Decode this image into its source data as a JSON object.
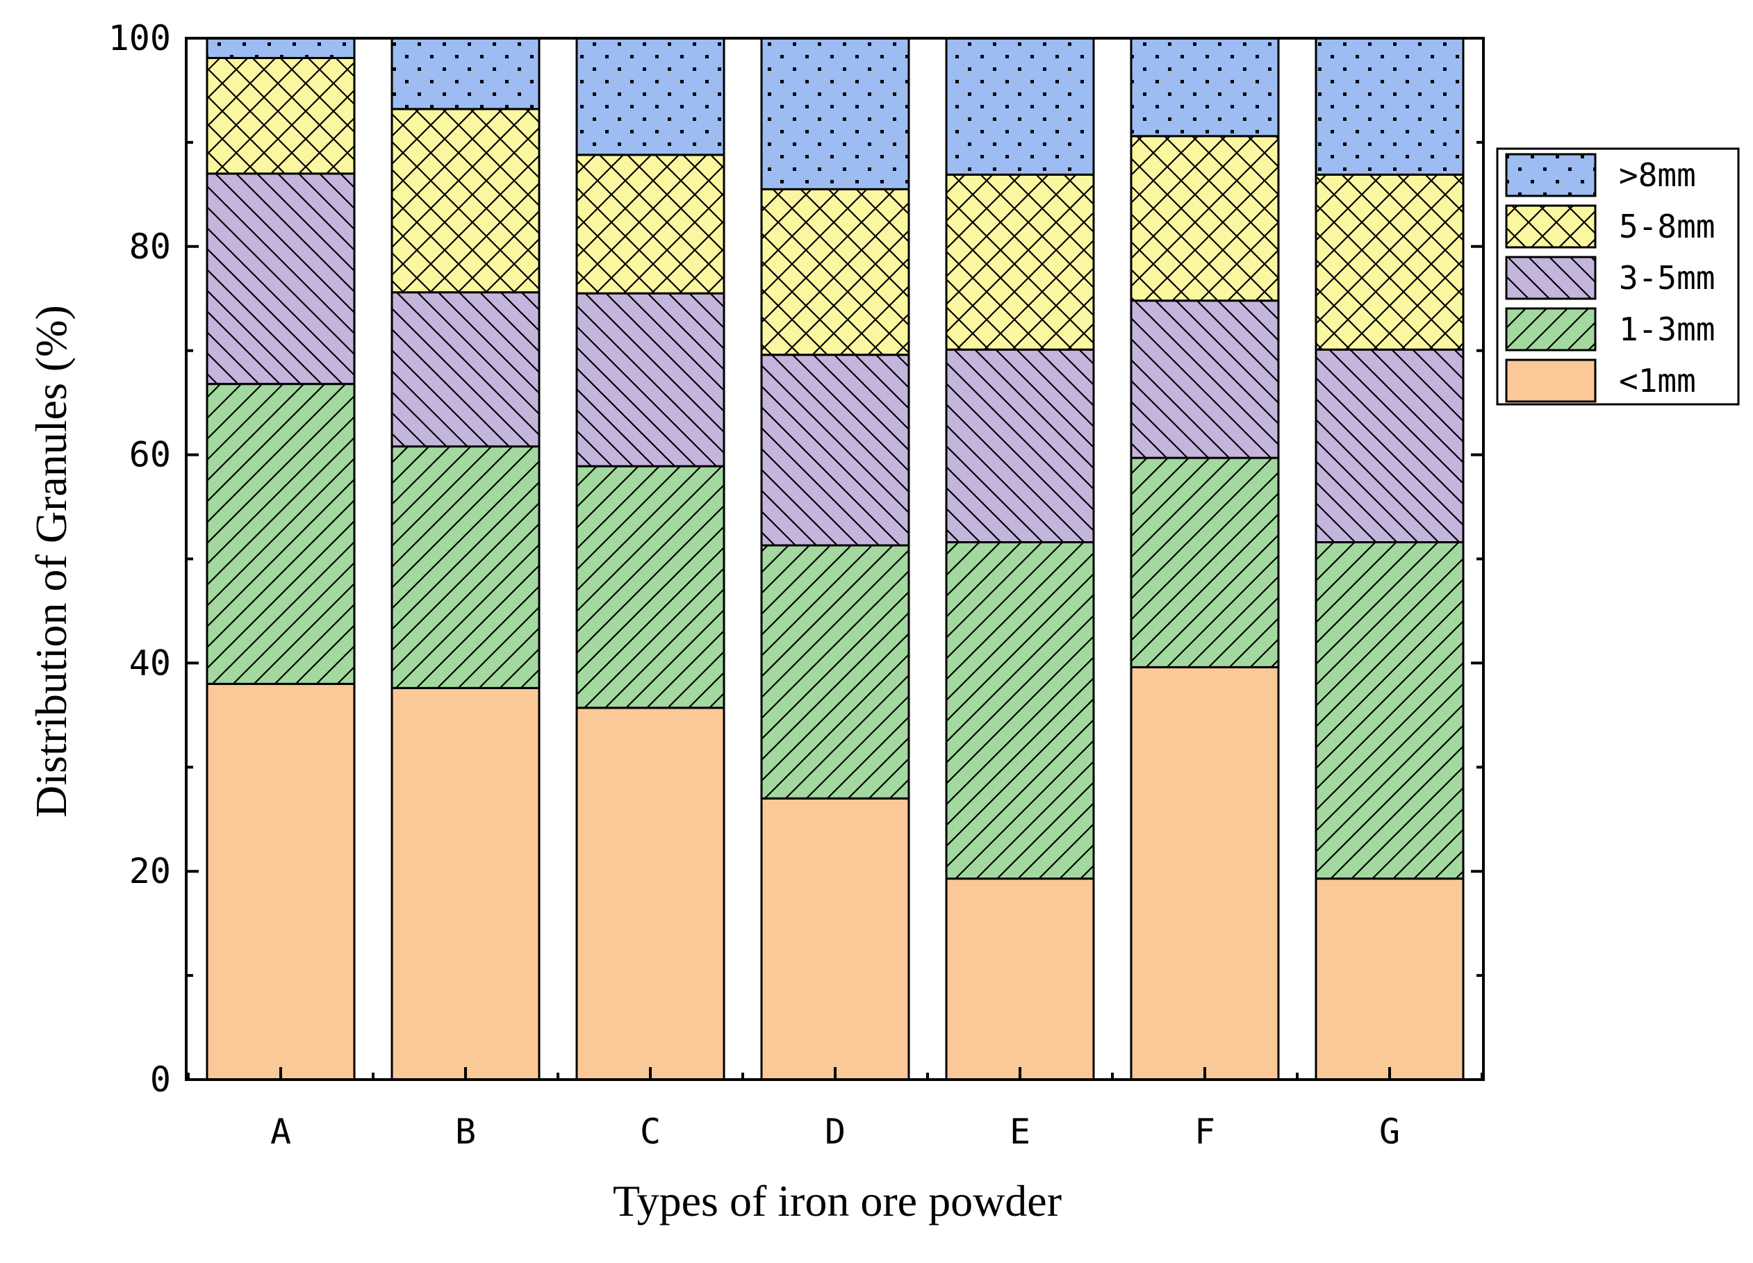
{
  "chart_data": {
    "type": "bar",
    "stacked": true,
    "xlabel": "Types of iron ore powder",
    "ylabel": "Distribution of Granules (%)",
    "ylim": [
      0,
      100
    ],
    "yticks": [
      0,
      20,
      40,
      60,
      80,
      100
    ],
    "categories": [
      "A",
      "B",
      "C",
      "D",
      "E",
      "F",
      "G"
    ],
    "legend_position": "right",
    "series": [
      {
        "name": "<1mm",
        "color": "#fbc898",
        "pattern": "none",
        "values": [
          38.0,
          37.6,
          35.7,
          27.0,
          19.3,
          39.6,
          19.3
        ]
      },
      {
        "name": "1-3mm",
        "color": "#a3d89f",
        "pattern": "diagonal",
        "values": [
          28.8,
          23.2,
          23.2,
          24.3,
          32.3,
          20.1,
          32.3
        ]
      },
      {
        "name": "3-5mm",
        "color": "#c4b5dc",
        "pattern": "backslash",
        "values": [
          20.2,
          14.8,
          16.6,
          18.3,
          18.5,
          15.1,
          18.5
        ]
      },
      {
        "name": "5-8mm",
        "color": "#fbf6a0",
        "pattern": "crosshatch",
        "values": [
          11.1,
          17.6,
          13.3,
          15.9,
          16.8,
          15.8,
          16.8
        ]
      },
      {
        "name": ">8mm",
        "color": "#9cbcf2",
        "pattern": "dots",
        "values": [
          1.9,
          6.8,
          11.2,
          14.5,
          13.1,
          9.4,
          13.1
        ]
      }
    ]
  }
}
